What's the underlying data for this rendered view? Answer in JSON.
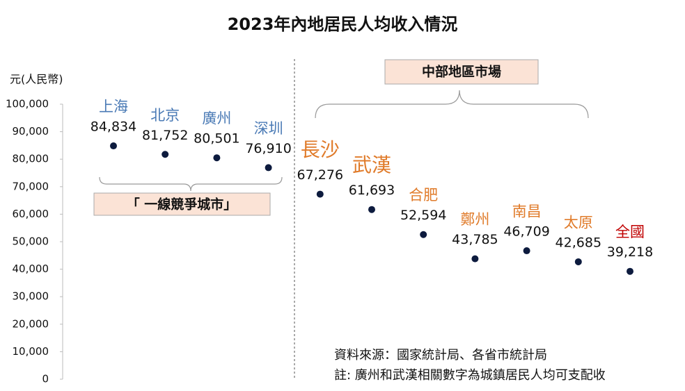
{
  "chart_data": {
    "type": "dot",
    "title": "2023年內地居民人均收入情況",
    "y_label": "元(人民幣)",
    "categories": [
      "上海",
      "北京",
      "廣州",
      "深圳",
      "長沙",
      "武漢",
      "合肥",
      "鄭州",
      "南昌",
      "太原",
      "全國"
    ],
    "values": [
      84834,
      81752,
      80501,
      76910,
      67276,
      61693,
      52594,
      43785,
      46709,
      42685,
      39218
    ],
    "value_labels": [
      "84,834",
      "81,752",
      "80,501",
      "76,910",
      "67,276",
      "61,693",
      "52,594",
      "43,785",
      "46,709",
      "42,685",
      "39,218"
    ],
    "category_colors": [
      "#4a7ab5",
      "#4a7ab5",
      "#4a7ab5",
      "#4a7ab5",
      "#e07b2a",
      "#e07b2a",
      "#e07b2a",
      "#e07b2a",
      "#e07b2a",
      "#e07b2a",
      "#c00000"
    ],
    "color": "#0d1b3e",
    "ylim": [
      0,
      100000
    ],
    "yticks": [
      0,
      {
        "value": 10000,
        "label": "10,000"
      },
      {
        "value": 20000,
        "label": "20,000"
      },
      {
        "value": 30000,
        "label": "30,000"
      },
      {
        "value": 40000,
        "label": "40,000"
      },
      {
        "value": 50000,
        "label": "50,000"
      },
      {
        "value": 60000,
        "label": "60,000"
      },
      {
        "value": 70000,
        "label": "70,000"
      },
      {
        "value": 80000,
        "label": "80,000"
      },
      {
        "value": 90000,
        "label": "90,000"
      },
      {
        "value": 100000,
        "label": "100,000"
      }
    ],
    "annotations": [
      "「 一線競爭城市」",
      "中部地區市場"
    ],
    "notes": [
      "資料來源：國家統計局、各省市統計局",
      "註: 廣州和武漢相關數字為城鎮居民人均可支配收"
    ]
  }
}
